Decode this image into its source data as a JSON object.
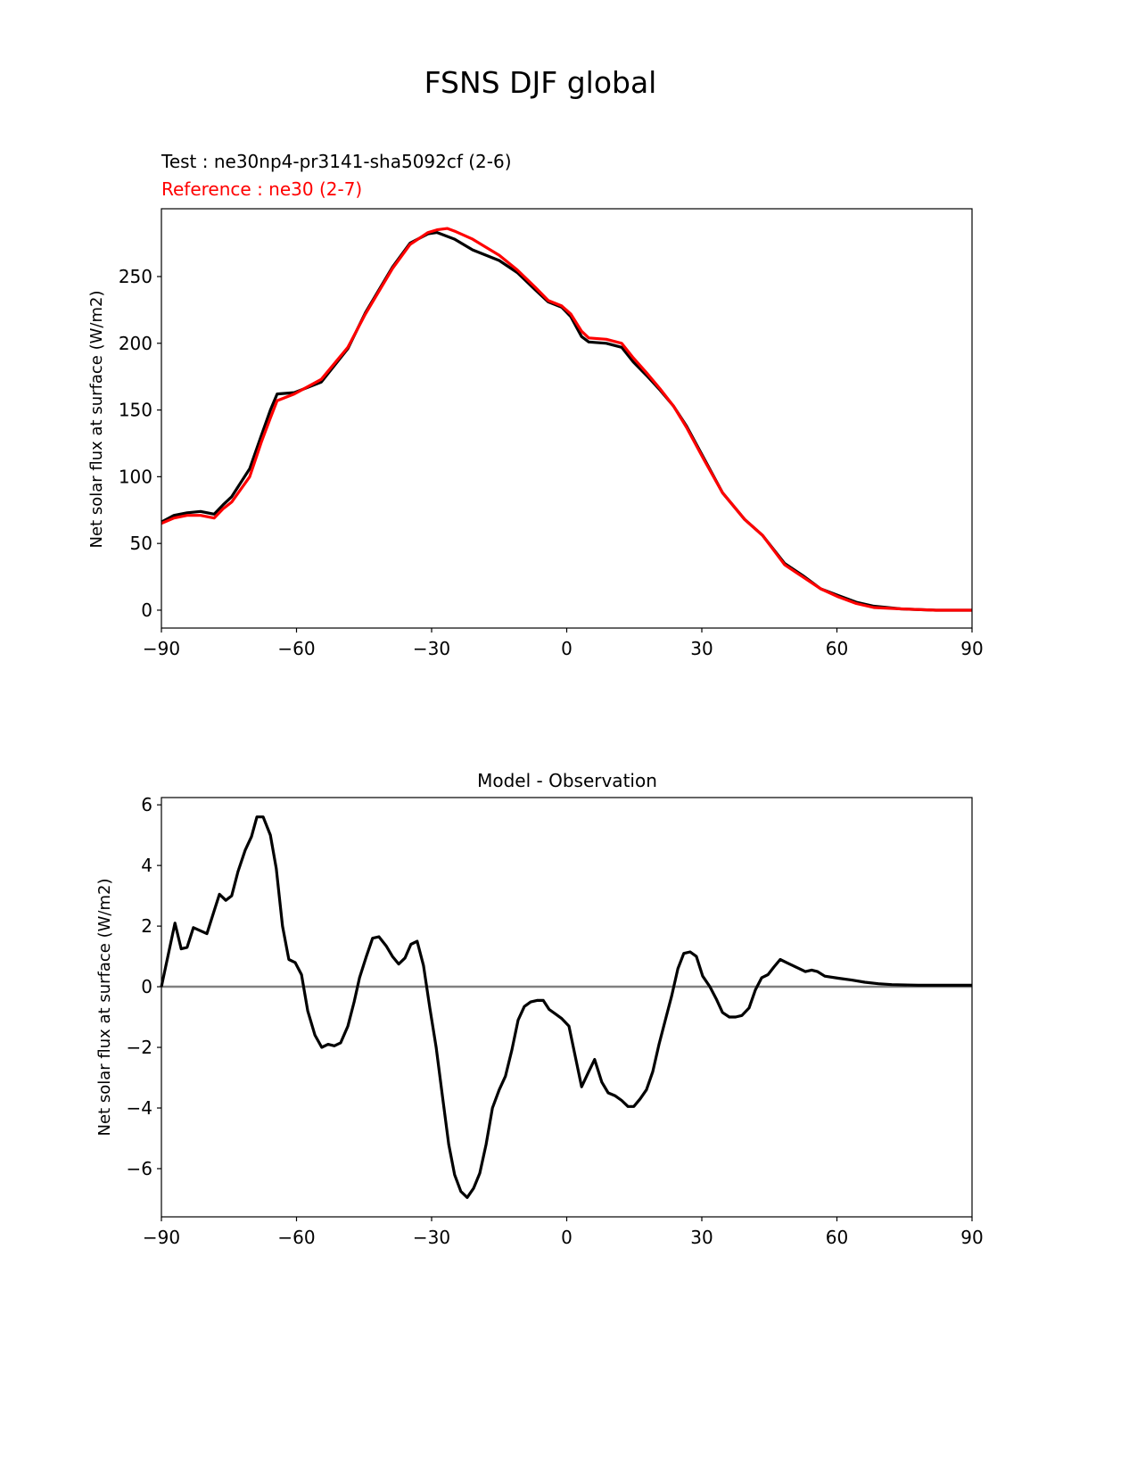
{
  "figure_title": "FSNS DJF global",
  "chart_data": [
    {
      "type": "line",
      "test_label": "Test : ne30np4-pr3141-sha5092cf (2-6)",
      "reference_label": "Reference : ne30 (2-7)",
      "xlabel": "",
      "ylabel": "Net solar flux at surface (W/m2)",
      "xlim": [
        -90,
        90
      ],
      "ylim": [
        -13.4,
        300.8
      ],
      "xticks": [
        -90,
        -60,
        -30,
        0,
        30,
        60,
        90
      ],
      "xtick_labels": [
        "−90",
        "−60",
        "−30",
        "0",
        "30",
        "60",
        "90"
      ],
      "yticks": [
        0,
        50,
        100,
        150,
        200,
        250
      ],
      "ytick_labels": [
        "0",
        "50",
        "100",
        "150",
        "200",
        "250"
      ],
      "grid": false,
      "series": [
        {
          "name": "Test",
          "color": "#000000",
          "x": [
            -90,
            -87.2,
            -84.3,
            -81.3,
            -78.3,
            -76.3,
            -74.4,
            -70.4,
            -67.8,
            -65.8,
            -64.3,
            -60.5,
            -54.5,
            -48.6,
            -44.7,
            -38.7,
            -34.8,
            -30.8,
            -28.8,
            -24.9,
            -20.9,
            -15,
            -11,
            -7,
            -4.1,
            -1.1,
            0.9,
            3.3,
            4.9,
            8.8,
            12.2,
            14.8,
            17.7,
            20.7,
            23.7,
            26.6,
            30.6,
            34.6,
            39.5,
            43.5,
            48.4,
            52.4,
            56.4,
            60.3,
            64.3,
            68.2,
            74.2,
            82,
            90
          ],
          "y": [
            66,
            71,
            73,
            74,
            72,
            79,
            85,
            106,
            131,
            150,
            162,
            163,
            171,
            196,
            223,
            257,
            275,
            282,
            283,
            278,
            270,
            262,
            253,
            240,
            231,
            227,
            220,
            205,
            201,
            200,
            197,
            186,
            176,
            165,
            153,
            138,
            113,
            88,
            68,
            56,
            35,
            26,
            16,
            11,
            6,
            3,
            1,
            0,
            0
          ]
        },
        {
          "name": "Reference",
          "color": "#ff0000",
          "x": [
            -90,
            -87.2,
            -84.3,
            -81.3,
            -78.3,
            -76.3,
            -74.4,
            -70.4,
            -67.8,
            -65.8,
            -64.3,
            -60.5,
            -54.5,
            -48.6,
            -44.7,
            -38.7,
            -34.8,
            -30.8,
            -28.8,
            -26.5,
            -24.9,
            -20.9,
            -15,
            -11,
            -7,
            -4.1,
            -1.1,
            0.9,
            3.3,
            4.9,
            8.8,
            12.2,
            14.8,
            17.7,
            20.7,
            23.7,
            26.6,
            30.6,
            34.6,
            39.5,
            43.5,
            48.4,
            52.4,
            56.4,
            60.3,
            64.3,
            68.2,
            74.2,
            82,
            90
          ],
          "y": [
            65,
            69,
            71,
            71,
            69,
            76,
            81,
            100,
            126,
            144,
            157,
            162,
            173,
            197,
            222,
            256,
            274,
            283,
            285,
            286,
            284,
            278,
            266,
            255,
            242,
            232,
            228,
            222,
            209,
            204,
            203,
            200,
            189,
            178,
            166,
            153,
            137,
            112,
            88,
            68,
            56,
            34,
            25,
            16,
            10,
            5,
            2,
            1,
            0,
            0
          ]
        }
      ]
    },
    {
      "type": "line",
      "title": "Model - Observation",
      "xlabel": "",
      "ylabel": "Net solar flux at surface (W/m2)",
      "xlim": [
        -90,
        90
      ],
      "ylim": [
        -7.59,
        6.24
      ],
      "xticks": [
        -90,
        -60,
        -30,
        0,
        30,
        60,
        90
      ],
      "xtick_labels": [
        "−90",
        "−60",
        "−30",
        "0",
        "30",
        "60",
        "90"
      ],
      "yticks": [
        -6,
        -4,
        -2,
        0,
        2,
        4,
        6
      ],
      "ytick_labels": [
        "−6",
        "−4",
        "−2",
        "0",
        "2",
        "4",
        "6"
      ],
      "grid": false,
      "zero_line_color": "#808080",
      "series": [
        {
          "name": "Difference",
          "color": "#000000",
          "x": [
            -90,
            -87,
            -85.6,
            -84.3,
            -82.9,
            -79.9,
            -78.3,
            -77.1,
            -75.7,
            -74.4,
            -73,
            -71.4,
            -70,
            -68.8,
            -67.4,
            -65.8,
            -64.5,
            -63.1,
            -61.7,
            -60.3,
            -58.9,
            -57.5,
            -55.9,
            -54.4,
            -53,
            -51.6,
            -50.2,
            -48.6,
            -47.2,
            -46,
            -44.5,
            -43.1,
            -41.7,
            -40.1,
            -38.7,
            -37.3,
            -35.9,
            -34.6,
            -33.2,
            -31.8,
            -30.4,
            -29,
            -27.6,
            -26.2,
            -24.9,
            -23.5,
            -22.1,
            -20.7,
            -19.3,
            -17.9,
            -16.5,
            -15,
            -13.6,
            -12.2,
            -10.8,
            -9.4,
            -8,
            -6.6,
            -5.2,
            -3.9,
            -2.5,
            -1.1,
            0.5,
            1.9,
            3.3,
            4.9,
            6.2,
            7.8,
            9.2,
            10.8,
            12.2,
            13.6,
            14.9,
            16.3,
            17.7,
            19.1,
            20.5,
            21.9,
            23.3,
            24.7,
            26,
            27.4,
            28.8,
            30.2,
            31.8,
            33.2,
            34.6,
            36.1,
            37.5,
            38.9,
            40.5,
            41.9,
            43.3,
            44.7,
            46,
            47.4,
            48.8,
            50.2,
            51.6,
            53,
            54.4,
            55.7,
            57.3,
            60.3,
            63.3,
            66.2,
            69.2,
            72.2,
            78.1,
            90
          ],
          "y": [
            0,
            2.1,
            1.25,
            1.3,
            1.95,
            1.75,
            2.5,
            3.05,
            2.85,
            3.0,
            3.8,
            4.5,
            4.95,
            5.6,
            5.6,
            5.0,
            3.9,
            2.0,
            0.9,
            0.8,
            0.4,
            -0.8,
            -1.6,
            -2.0,
            -1.9,
            -1.95,
            -1.85,
            -1.3,
            -0.5,
            0.3,
            1.0,
            1.6,
            1.65,
            1.35,
            1.0,
            0.75,
            0.95,
            1.4,
            1.5,
            0.7,
            -0.7,
            -2.0,
            -3.6,
            -5.2,
            -6.2,
            -6.75,
            -6.95,
            -6.65,
            -6.15,
            -5.2,
            -4.0,
            -3.4,
            -2.95,
            -2.1,
            -1.1,
            -0.65,
            -0.5,
            -0.45,
            -0.45,
            -0.75,
            -0.9,
            -1.05,
            -1.3,
            -2.3,
            -3.3,
            -2.8,
            -2.4,
            -3.15,
            -3.5,
            -3.6,
            -3.75,
            -3.95,
            -3.95,
            -3.7,
            -3.4,
            -2.8,
            -1.9,
            -1.1,
            -0.3,
            0.6,
            1.1,
            1.15,
            1.0,
            0.35,
            0.0,
            -0.4,
            -0.85,
            -1.0,
            -1.0,
            -0.95,
            -0.7,
            -0.1,
            0.3,
            0.4,
            0.65,
            0.9,
            0.8,
            0.7,
            0.6,
            0.5,
            0.55,
            0.5,
            0.35,
            0.28,
            0.22,
            0.15,
            0.1,
            0.07,
            0.05,
            0.05
          ]
        }
      ]
    }
  ]
}
